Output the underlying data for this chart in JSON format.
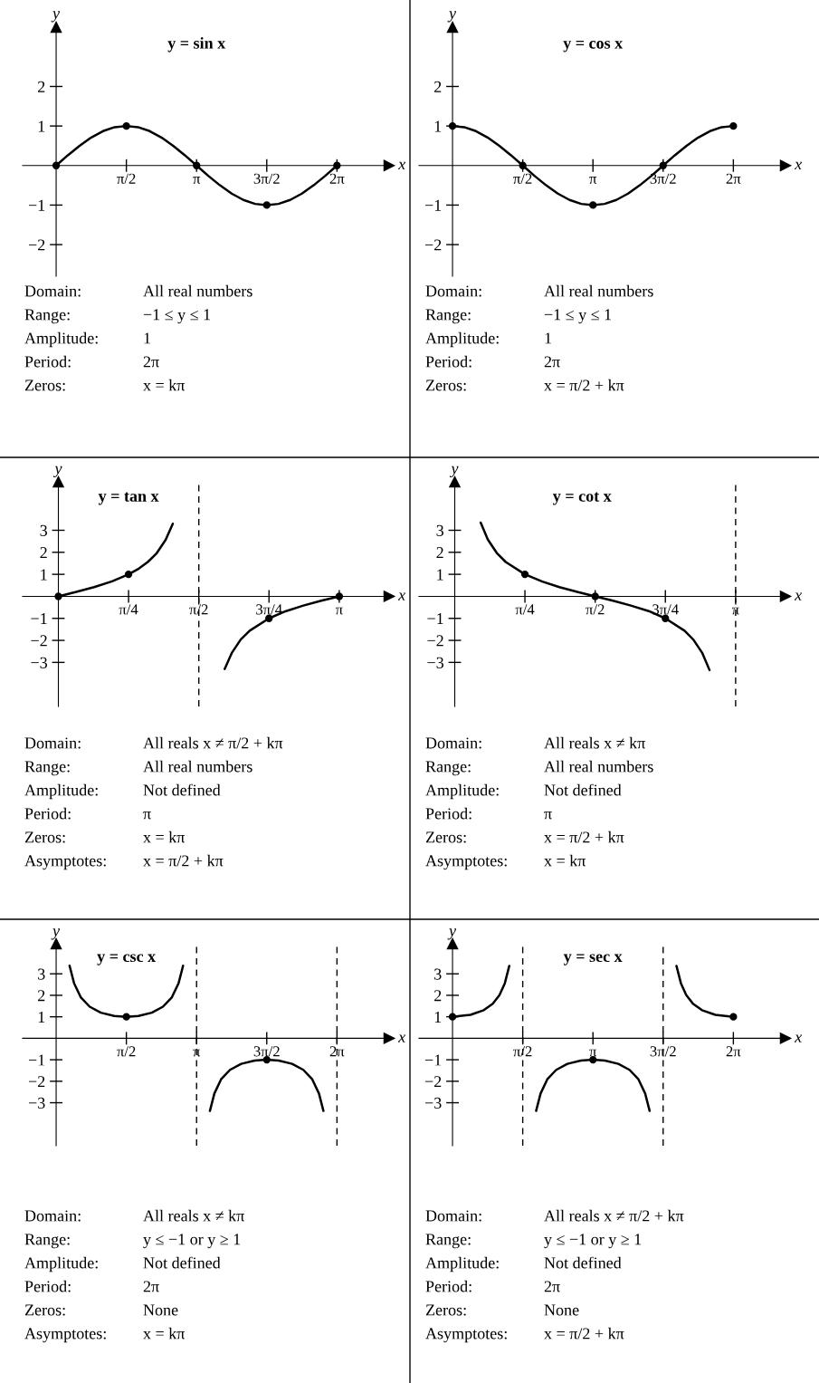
{
  "chart_data": [
    {
      "type": "line",
      "title": "y = sin x",
      "xlabel": "x",
      "ylabel": "y",
      "xlim": [
        -0.75,
        7.45
      ],
      "ylim": [
        -2.8,
        3.5
      ],
      "xticks": [
        {
          "value": 1.571,
          "label": "π/2"
        },
        {
          "value": 3.142,
          "label": "π"
        },
        {
          "value": 4.712,
          "label": "3π/2"
        },
        {
          "value": 6.283,
          "label": "2π"
        }
      ],
      "yticks": [
        {
          "value": -2,
          "label": "−2"
        },
        {
          "value": -1,
          "label": "−1"
        },
        1,
        2
      ],
      "series": [
        {
          "color": "#000000",
          "x": [
            0,
            0.262,
            0.524,
            0.785,
            1.047,
            1.309,
            1.571,
            1.833,
            2.094,
            2.356,
            2.618,
            2.88,
            3.142,
            3.403,
            3.665,
            3.927,
            4.189,
            4.451,
            4.712,
            4.974,
            5.236,
            5.498,
            5.76,
            6.021,
            6.283
          ],
          "values": [
            0,
            0.26,
            0.5,
            0.71,
            0.87,
            0.97,
            1,
            0.97,
            0.87,
            0.71,
            0.5,
            0.26,
            0,
            -0.26,
            -0.5,
            -0.71,
            -0.87,
            -0.97,
            -1,
            -0.97,
            -0.87,
            -0.71,
            -0.5,
            -0.26,
            0
          ]
        },
        {
          "type": "scatter",
          "marker": "circle",
          "color": "#000000",
          "x": [
            0,
            1.571,
            3.142,
            4.712,
            6.283
          ],
          "values": [
            0,
            1,
            0,
            -1,
            0
          ]
        }
      ],
      "annotations": [
        "Domain: All real numbers",
        "Range: −1 ≤ y ≤ 1",
        "Amplitude: 1",
        "Period: 2π",
        "Zeros: x = kπ"
      ]
    },
    {
      "type": "line",
      "title": "y = cos x",
      "xlabel": "x",
      "ylabel": "y",
      "xlim": [
        -0.75,
        7.45
      ],
      "ylim": [
        -2.8,
        3.5
      ],
      "xticks": [
        {
          "value": 1.571,
          "label": "π/2"
        },
        {
          "value": 3.142,
          "label": "π"
        },
        {
          "value": 4.712,
          "label": "3π/2"
        },
        {
          "value": 6.283,
          "label": "2π"
        }
      ],
      "yticks": [
        {
          "value": -2,
          "label": "−2"
        },
        {
          "value": -1,
          "label": "−1"
        },
        1,
        2
      ],
      "series": [
        {
          "color": "#000000",
          "x": [
            0,
            0.262,
            0.524,
            0.785,
            1.047,
            1.309,
            1.571,
            1.833,
            2.094,
            2.356,
            2.618,
            2.88,
            3.142,
            3.403,
            3.665,
            3.927,
            4.189,
            4.451,
            4.712,
            4.974,
            5.236,
            5.498,
            5.76,
            6.021,
            6.283
          ],
          "values": [
            1,
            0.97,
            0.87,
            0.71,
            0.5,
            0.26,
            0,
            -0.26,
            -0.5,
            -0.71,
            -0.87,
            -0.97,
            -1,
            -0.97,
            -0.87,
            -0.71,
            -0.5,
            -0.26,
            0,
            0.26,
            0.5,
            0.71,
            0.87,
            0.97,
            1
          ]
        },
        {
          "type": "scatter",
          "marker": "circle",
          "color": "#000000",
          "x": [
            0,
            1.571,
            3.142,
            4.712,
            6.283
          ],
          "values": [
            1,
            0,
            -1,
            0,
            1
          ]
        }
      ],
      "annotations": [
        "Domain: All real numbers",
        "Range: −1 ≤ y ≤ 1",
        "Amplitude: 1",
        "Period: 2π",
        "Zeros: x = π/2 + kπ"
      ]
    },
    {
      "type": "line",
      "title": "y = tan x",
      "xlabel": "x",
      "ylabel": "y",
      "xlim": [
        -0.4,
        3.7
      ],
      "ylim": [
        -5,
        5.2
      ],
      "xticks": [
        {
          "value": 0.785,
          "label": "π/4"
        },
        {
          "value": 1.571,
          "label": "π/2"
        },
        {
          "value": 2.356,
          "label": "3π/4"
        },
        {
          "value": 3.142,
          "label": "π"
        }
      ],
      "yticks": [
        {
          "value": -3,
          "label": "−3"
        },
        {
          "value": -2,
          "label": "−2"
        },
        {
          "value": -1,
          "label": "−1"
        },
        1,
        2,
        3
      ],
      "series": [
        {
          "color": "#000000",
          "x": [
            0,
            0.2,
            0.4,
            0.6,
            0.785,
            0.9,
            1.0,
            1.1,
            1.2,
            1.28
          ],
          "values": [
            0,
            0.2,
            0.42,
            0.68,
            1,
            1.26,
            1.56,
            1.96,
            2.57,
            3.3
          ]
        },
        {
          "color": "#000000",
          "x": [
            1.86,
            1.94,
            2.04,
            2.14,
            2.356,
            2.54,
            2.74,
            2.94,
            3.142
          ],
          "values": [
            -3.3,
            -2.57,
            -1.96,
            -1.56,
            -1,
            -0.68,
            -0.42,
            -0.2,
            0
          ]
        },
        {
          "type": "scatter",
          "marker": "circle",
          "color": "#000000",
          "x": [
            0,
            0.785,
            2.356,
            3.142
          ],
          "values": [
            0,
            1,
            -1,
            0
          ]
        }
      ],
      "ref_lines": [
        {
          "axis": "x",
          "value": 1.571,
          "line_style": "dashed",
          "color": "#000000"
        }
      ],
      "annotations": [
        "Domain: All reals x ≠ π/2 + kπ",
        "Range: All real numbers",
        "Amplitude: Not defined",
        "Period: π",
        "Zeros: x = kπ",
        "Asymptotes: x = π/2 + kπ"
      ]
    },
    {
      "type": "line",
      "title": "y = cot x",
      "xlabel": "x",
      "ylabel": "y",
      "xlim": [
        -0.4,
        3.7
      ],
      "ylim": [
        -5,
        5.2
      ],
      "xticks": [
        {
          "value": 0.785,
          "label": "π/4"
        },
        {
          "value": 1.571,
          "label": "π/2"
        },
        {
          "value": 2.356,
          "label": "3π/4"
        },
        {
          "value": 3.142,
          "label": "π"
        }
      ],
      "yticks": [
        {
          "value": -3,
          "label": "−3"
        },
        {
          "value": -2,
          "label": "−2"
        },
        {
          "value": -1,
          "label": "−1"
        },
        1,
        2,
        3
      ],
      "series": [
        {
          "color": "#000000",
          "x": [
            0.29,
            0.37,
            0.47,
            0.57,
            0.785,
            0.98,
            1.17,
            1.37,
            1.571,
            1.77,
            1.97,
            2.17,
            2.356,
            2.57,
            2.67,
            2.77,
            2.85
          ],
          "values": [
            3.35,
            2.58,
            1.97,
            1.56,
            1,
            0.67,
            0.42,
            0.2,
            0,
            -0.2,
            -0.42,
            -0.67,
            -1,
            -1.56,
            -1.97,
            -2.58,
            -3.35
          ]
        },
        {
          "type": "scatter",
          "marker": "circle",
          "color": "#000000",
          "x": [
            0.785,
            1.571,
            2.356
          ],
          "values": [
            1,
            0,
            -1
          ]
        }
      ],
      "ref_lines": [
        {
          "axis": "x",
          "value": 3.142,
          "line_style": "dashed",
          "color": "#000000"
        }
      ],
      "annotations": [
        "Domain: All reals x ≠ kπ",
        "Range: All real numbers",
        "Amplitude: Not defined",
        "Period: π",
        "Zeros: x = π/2 + kπ",
        "Asymptotes: x = kπ"
      ]
    },
    {
      "type": "line",
      "title": "y = csc x",
      "xlabel": "x",
      "ylabel": "y",
      "xlim": [
        -0.75,
        7.45
      ],
      "ylim": [
        -5,
        4.4
      ],
      "xticks": [
        {
          "value": 1.571,
          "label": "π/2"
        },
        {
          "value": 3.142,
          "label": "π"
        },
        {
          "value": 4.712,
          "label": "3π/2"
        },
        {
          "value": 6.283,
          "label": "2π"
        }
      ],
      "yticks": [
        {
          "value": -3,
          "label": "−3"
        },
        {
          "value": -2,
          "label": "−2"
        },
        {
          "value": -1,
          "label": "−1"
        },
        1,
        2,
        3
      ],
      "series": [
        {
          "color": "#000000",
          "x": [
            0.3,
            0.4,
            0.55,
            0.75,
            1.0,
            1.3,
            1.571,
            1.84,
            2.14,
            2.39,
            2.59,
            2.74,
            2.84
          ],
          "values": [
            3.38,
            2.57,
            1.91,
            1.47,
            1.19,
            1.04,
            1,
            1.04,
            1.19,
            1.47,
            1.91,
            2.57,
            3.38
          ]
        },
        {
          "color": "#000000",
          "x": [
            3.44,
            3.54,
            3.69,
            3.89,
            4.14,
            4.44,
            4.712,
            4.98,
            5.28,
            5.53,
            5.73,
            5.88,
            5.98
          ],
          "values": [
            -3.38,
            -2.57,
            -1.91,
            -1.47,
            -1.19,
            -1.04,
            -1,
            -1.04,
            -1.19,
            -1.47,
            -1.91,
            -2.57,
            -3.38
          ]
        },
        {
          "type": "scatter",
          "marker": "circle",
          "color": "#000000",
          "x": [
            1.571,
            4.712
          ],
          "values": [
            1,
            -1
          ]
        }
      ],
      "ref_lines": [
        {
          "axis": "x",
          "value": 3.142,
          "line_style": "dashed",
          "color": "#000000"
        },
        {
          "axis": "x",
          "value": 6.283,
          "line_style": "dashed",
          "color": "#000000"
        }
      ],
      "annotations": [
        "Domain: All reals x ≠ kπ",
        "Range: y ≤ −1 or y ≥ 1",
        "Amplitude: Not defined",
        "Period: 2π",
        "Zeros: None",
        "Asymptotes: x = kπ"
      ]
    },
    {
      "type": "line",
      "title": "y = sec x",
      "xlabel": "x",
      "ylabel": "y",
      "xlim": [
        -0.75,
        7.45
      ],
      "ylim": [
        -5,
        4.4
      ],
      "xticks": [
        {
          "value": 1.571,
          "label": "π/2"
        },
        {
          "value": 3.142,
          "label": "π"
        },
        {
          "value": 4.712,
          "label": "3π/2"
        },
        {
          "value": 6.283,
          "label": "2π"
        }
      ],
      "yticks": [
        {
          "value": -3,
          "label": "−3"
        },
        {
          "value": -2,
          "label": "−2"
        },
        {
          "value": -1,
          "label": "−1"
        },
        1,
        2,
        3
      ],
      "series": [
        {
          "color": "#000000",
          "x": [
            0,
            0.4,
            0.7,
            0.9,
            1.05,
            1.17,
            1.27
          ],
          "values": [
            1,
            1.09,
            1.31,
            1.61,
            2.01,
            2.56,
            3.37
          ]
        },
        {
          "color": "#000000",
          "x": [
            1.87,
            1.97,
            2.12,
            2.32,
            2.57,
            2.87,
            3.142,
            3.41,
            3.71,
            3.96,
            4.16,
            4.31,
            4.41
          ],
          "values": [
            -3.38,
            -2.57,
            -1.91,
            -1.47,
            -1.19,
            -1.04,
            -1,
            -1.04,
            -1.19,
            -1.47,
            -1.91,
            -2.57,
            -3.38
          ]
        },
        {
          "color": "#000000",
          "x": [
            5.01,
            5.11,
            5.23,
            5.38,
            5.58,
            5.88,
            6.283
          ],
          "values": [
            3.37,
            2.56,
            2.01,
            1.61,
            1.31,
            1.09,
            1
          ]
        },
        {
          "type": "scatter",
          "marker": "circle",
          "color": "#000000",
          "x": [
            0,
            3.142,
            6.283
          ],
          "values": [
            1,
            -1,
            1
          ]
        }
      ],
      "ref_lines": [
        {
          "axis": "x",
          "value": 1.571,
          "line_style": "dashed",
          "color": "#000000"
        },
        {
          "axis": "x",
          "value": 4.712,
          "line_style": "dashed",
          "color": "#000000"
        }
      ],
      "annotations": [
        "Domain: All reals x ≠ π/2 + kπ",
        "Range: y ≤ −1 or y ≥ 1",
        "Amplitude: Not defined",
        "Period: 2π",
        "Zeros: None",
        "Asymptotes: x = π/2 + kπ"
      ]
    }
  ]
}
